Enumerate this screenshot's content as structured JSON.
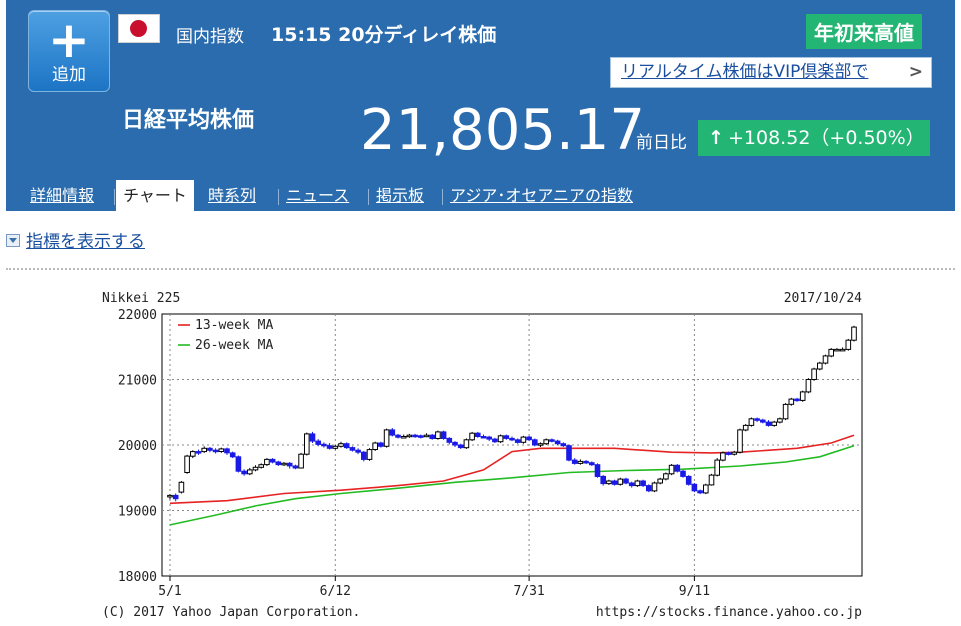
{
  "header": {
    "add_button": {
      "icon": "plus-icon",
      "label": "追加"
    },
    "flag": "japan-flag-icon",
    "category": "国内指数",
    "time_delay": "15:15 20分ディレイ株価",
    "ytd_badge": "年初来高値",
    "vip_link": "リアルタイム株価はVIP倶楽部で",
    "vip_chevron": "chevron-right-icon",
    "title": "日経平均株価",
    "price": "21,805.17",
    "prev_day_label": "前日比",
    "change_arrow": "↑",
    "change": "+108.52（+0.50%）",
    "colors": {
      "header_bg": "#2a6cae",
      "badge_green": "#22b573",
      "link": "#1a4fa0"
    }
  },
  "tabs": [
    {
      "label": "詳細情報",
      "active": false
    },
    {
      "label": "チャート",
      "active": true
    },
    {
      "label": "時系列",
      "active": false
    },
    {
      "label": "ニュース",
      "active": false
    },
    {
      "label": "掲示板",
      "active": false
    },
    {
      "label": "アジア･オセアニアの指数",
      "active": false
    }
  ],
  "indicator_toggle": "指標を表示する",
  "chart_data": {
    "type": "candlestick",
    "title": "Nikkei 225",
    "date": "2017/10/24",
    "footer_left": "(C) 2017 Yahoo Japan Corporation.",
    "footer_right": "https://stocks.finance.yahoo.co.jp",
    "ylim": [
      18000,
      22000
    ],
    "y_ticks": [
      "18000",
      "19000",
      "20000",
      "21000",
      "22000"
    ],
    "y_tick_values": [
      18000,
      19000,
      20000,
      21000,
      22000
    ],
    "x_ticks": [
      "5/1",
      "6/12",
      "7/31",
      "9/11"
    ],
    "x_tick_index": [
      0,
      29,
      63,
      92
    ],
    "n_days": 121,
    "grid": true,
    "legend_position": "top-left",
    "colors": {
      "up": "#ffffff",
      "down": "#1a1ae6",
      "ma13": "#e62222",
      "ma26": "#22bb22"
    },
    "series": [
      {
        "name": "13-week MA",
        "color": "#e62222",
        "points": [
          [
            0,
            19110
          ],
          [
            10,
            19150
          ],
          [
            20,
            19260
          ],
          [
            30,
            19310
          ],
          [
            40,
            19380
          ],
          [
            48,
            19450
          ],
          [
            55,
            19620
          ],
          [
            60,
            19900
          ],
          [
            65,
            19950
          ],
          [
            78,
            19950
          ],
          [
            88,
            19890
          ],
          [
            95,
            19880
          ],
          [
            100,
            19890
          ],
          [
            110,
            19950
          ],
          [
            116,
            20030
          ],
          [
            120,
            20150
          ]
        ]
      },
      {
        "name": "26-week MA",
        "color": "#22bb22",
        "points": [
          [
            0,
            18780
          ],
          [
            8,
            18930
          ],
          [
            15,
            19070
          ],
          [
            22,
            19180
          ],
          [
            30,
            19260
          ],
          [
            40,
            19340
          ],
          [
            50,
            19430
          ],
          [
            60,
            19500
          ],
          [
            70,
            19580
          ],
          [
            80,
            19610
          ],
          [
            90,
            19630
          ],
          [
            100,
            19680
          ],
          [
            108,
            19740
          ],
          [
            114,
            19820
          ],
          [
            120,
            19990
          ]
        ]
      }
    ],
    "candles": [
      [
        0,
        19210,
        19230,
        19170,
        19250
      ],
      [
        1,
        19230,
        19180,
        19140,
        19260
      ],
      [
        2,
        19280,
        19430,
        19260,
        19450
      ],
      [
        3,
        19580,
        19830,
        19560,
        19850
      ],
      [
        4,
        19830,
        19900,
        19800,
        19920
      ],
      [
        5,
        19900,
        19880,
        19850,
        19930
      ],
      [
        6,
        19900,
        19950,
        19880,
        19980
      ],
      [
        7,
        19950,
        19920,
        19890,
        19970
      ],
      [
        8,
        19920,
        19900,
        19870,
        19950
      ],
      [
        9,
        19900,
        19940,
        19880,
        19960
      ],
      [
        10,
        19940,
        19880,
        19850,
        19960
      ],
      [
        11,
        19880,
        19820,
        19800,
        19900
      ],
      [
        12,
        19820,
        19600,
        19580,
        19840
      ],
      [
        13,
        19600,
        19560,
        19530,
        19630
      ],
      [
        14,
        19560,
        19620,
        19540,
        19650
      ],
      [
        15,
        19620,
        19660,
        19600,
        19690
      ],
      [
        16,
        19660,
        19700,
        19640,
        19720
      ],
      [
        17,
        19700,
        19780,
        19680,
        19800
      ],
      [
        18,
        19780,
        19740,
        19720,
        19800
      ],
      [
        19,
        19740,
        19700,
        19680,
        19760
      ],
      [
        20,
        19700,
        19720,
        19680,
        19740
      ],
      [
        21,
        19720,
        19680,
        19640,
        19740
      ],
      [
        22,
        19680,
        19650,
        19630,
        19700
      ],
      [
        23,
        19650,
        19860,
        19640,
        19880
      ],
      [
        24,
        19860,
        20170,
        19840,
        20190
      ],
      [
        25,
        20170,
        20060,
        20030,
        20200
      ],
      [
        26,
        20060,
        20010,
        19980,
        20090
      ],
      [
        27,
        20010,
        19990,
        19960,
        20040
      ],
      [
        28,
        19990,
        19950,
        19930,
        20030
      ],
      [
        29,
        19950,
        19980,
        19930,
        20000
      ],
      [
        30,
        19980,
        20020,
        19960,
        20050
      ],
      [
        31,
        20020,
        19960,
        19940,
        20040
      ],
      [
        32,
        19960,
        19920,
        19900,
        19980
      ],
      [
        33,
        19920,
        19890,
        19860,
        19950
      ],
      [
        34,
        19890,
        19780,
        19750,
        19910
      ],
      [
        35,
        19780,
        19930,
        19760,
        19950
      ],
      [
        36,
        19930,
        20030,
        19910,
        20050
      ],
      [
        37,
        20030,
        19980,
        19960,
        20050
      ],
      [
        38,
        19980,
        20230,
        19960,
        20250
      ],
      [
        39,
        20230,
        20150,
        20130,
        20260
      ],
      [
        40,
        20150,
        20120,
        20100,
        20170
      ],
      [
        41,
        20120,
        20130,
        20100,
        20160
      ],
      [
        42,
        20130,
        20150,
        20110,
        20170
      ],
      [
        43,
        20150,
        20140,
        20110,
        20170
      ],
      [
        44,
        20140,
        20130,
        20100,
        20160
      ],
      [
        45,
        20130,
        20150,
        20120,
        20180
      ],
      [
        46,
        20150,
        20100,
        20080,
        20170
      ],
      [
        47,
        20100,
        20200,
        20080,
        20220
      ],
      [
        48,
        20200,
        20100,
        20080,
        20220
      ],
      [
        49,
        20100,
        20040,
        20010,
        20120
      ],
      [
        50,
        20040,
        20000,
        19970,
        20060
      ],
      [
        51,
        20000,
        19960,
        19940,
        20020
      ],
      [
        52,
        19960,
        20080,
        19940,
        20100
      ],
      [
        53,
        20080,
        20180,
        20060,
        20200
      ],
      [
        54,
        20180,
        20130,
        20110,
        20200
      ],
      [
        55,
        20130,
        20120,
        20100,
        20160
      ],
      [
        56,
        20120,
        20090,
        20060,
        20140
      ],
      [
        57,
        20090,
        20050,
        20030,
        20110
      ],
      [
        58,
        20050,
        20140,
        20030,
        20160
      ],
      [
        59,
        20140,
        20100,
        20080,
        20160
      ],
      [
        60,
        20100,
        20080,
        20060,
        20130
      ],
      [
        61,
        20080,
        20040,
        20020,
        20100
      ],
      [
        62,
        20040,
        20120,
        20020,
        20140
      ],
      [
        63,
        20120,
        20080,
        20060,
        20140
      ],
      [
        64,
        20080,
        20000,
        19980,
        20100
      ],
      [
        65,
        20000,
        20020,
        19970,
        20040
      ],
      [
        66,
        20020,
        20080,
        20000,
        20100
      ],
      [
        67,
        20080,
        20060,
        20040,
        20100
      ],
      [
        68,
        20060,
        20020,
        20000,
        20080
      ],
      [
        69,
        20020,
        19990,
        19970,
        20040
      ],
      [
        70,
        19990,
        19770,
        19750,
        20010
      ],
      [
        71,
        19770,
        19720,
        19700,
        19800
      ],
      [
        72,
        19720,
        19750,
        19700,
        19780
      ],
      [
        73,
        19750,
        19730,
        19710,
        19770
      ],
      [
        74,
        19730,
        19700,
        19680,
        19750
      ],
      [
        75,
        19700,
        19520,
        19500,
        19720
      ],
      [
        76,
        19520,
        19410,
        19380,
        19540
      ],
      [
        77,
        19410,
        19450,
        19390,
        19470
      ],
      [
        78,
        19450,
        19400,
        19380,
        19470
      ],
      [
        79,
        19400,
        19480,
        19380,
        19500
      ],
      [
        80,
        19480,
        19420,
        19400,
        19500
      ],
      [
        81,
        19420,
        19380,
        19350,
        19440
      ],
      [
        82,
        19380,
        19450,
        19360,
        19470
      ],
      [
        83,
        19450,
        19380,
        19360,
        19470
      ],
      [
        84,
        19380,
        19300,
        19280,
        19400
      ],
      [
        85,
        19300,
        19420,
        19280,
        19440
      ],
      [
        86,
        19420,
        19480,
        19400,
        19500
      ],
      [
        87,
        19480,
        19560,
        19460,
        19580
      ],
      [
        88,
        19560,
        19690,
        19540,
        19710
      ],
      [
        89,
        19690,
        19600,
        19580,
        19710
      ],
      [
        90,
        19600,
        19520,
        19500,
        19620
      ],
      [
        91,
        19520,
        19400,
        19380,
        19540
      ],
      [
        92,
        19400,
        19300,
        19280,
        19420
      ],
      [
        93,
        19300,
        19270,
        19250,
        19320
      ],
      [
        94,
        19270,
        19390,
        19250,
        19410
      ],
      [
        95,
        19390,
        19540,
        19380,
        19560
      ],
      [
        96,
        19540,
        19770,
        19520,
        19800
      ],
      [
        97,
        19770,
        19880,
        19750,
        19900
      ],
      [
        98,
        19880,
        19860,
        19840,
        19900
      ],
      [
        99,
        19860,
        19890,
        19840,
        19910
      ],
      [
        100,
        19890,
        20230,
        19870,
        20250
      ],
      [
        101,
        20230,
        20300,
        20210,
        20320
      ],
      [
        102,
        20300,
        20400,
        20280,
        20420
      ],
      [
        103,
        20400,
        20380,
        20350,
        20420
      ],
      [
        104,
        20380,
        20350,
        20330,
        20400
      ],
      [
        105,
        20350,
        20300,
        20280,
        20380
      ],
      [
        106,
        20300,
        20350,
        20280,
        20370
      ],
      [
        107,
        20350,
        20400,
        20330,
        20420
      ],
      [
        108,
        20400,
        20620,
        20380,
        20640
      ],
      [
        109,
        20620,
        20700,
        20600,
        20720
      ],
      [
        110,
        20700,
        20680,
        20660,
        20720
      ],
      [
        111,
        20680,
        20810,
        20660,
        20830
      ],
      [
        112,
        20810,
        21000,
        20790,
        21020
      ],
      [
        113,
        21000,
        21160,
        20980,
        21180
      ],
      [
        114,
        21160,
        21250,
        21140,
        21270
      ],
      [
        115,
        21250,
        21360,
        21230,
        21380
      ],
      [
        116,
        21360,
        21460,
        21340,
        21480
      ],
      [
        117,
        21460,
        21460,
        21430,
        21480
      ],
      [
        118,
        21460,
        21460,
        21440,
        21490
      ],
      [
        119,
        21460,
        21600,
        21440,
        21620
      ],
      [
        120,
        21600,
        21800,
        21580,
        21820
      ]
    ]
  }
}
